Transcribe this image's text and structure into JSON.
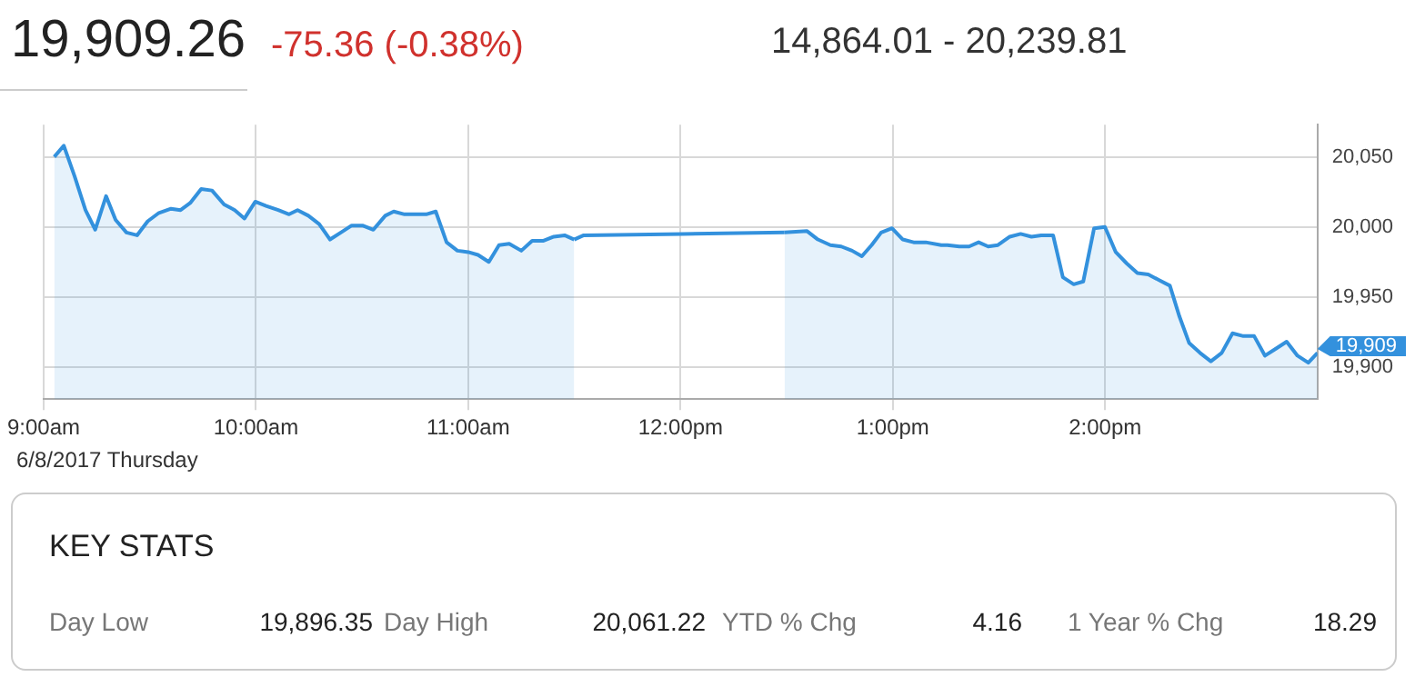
{
  "chart_data": {
    "type": "area",
    "title": "19,909.26",
    "subtitle": "-75.36 (-0.38%)",
    "xlim": [
      9,
      15
    ],
    "ylim": [
      19877,
      20073
    ],
    "xticks": [
      {
        "value": 9,
        "label": "9:00am"
      },
      {
        "value": 10,
        "label": "10:00am"
      },
      {
        "value": 11,
        "label": "11:00am"
      },
      {
        "value": 12,
        "label": "12:00pm"
      },
      {
        "value": 13,
        "label": "1:00pm"
      },
      {
        "value": 14,
        "label": "2:00pm"
      }
    ],
    "yticks": [
      {
        "value": 19900,
        "label": "19,900"
      },
      {
        "value": 19950,
        "label": "19,950"
      },
      {
        "value": 20000,
        "label": "20,000"
      },
      {
        "value": 20050,
        "label": "20,050"
      }
    ],
    "grid": true,
    "legend": false,
    "marker": "none",
    "line_style": "solid",
    "series": [
      {
        "color": "#3391dd",
        "x": [
          9.05,
          9.095,
          9.146,
          9.197,
          9.243,
          9.294,
          9.339,
          9.39,
          9.44,
          9.49,
          9.543,
          9.6,
          9.645,
          9.69,
          9.742,
          9.793,
          9.85,
          9.9,
          9.946,
          9.997,
          10.048,
          10.105,
          10.156,
          10.196,
          10.247,
          10.298,
          10.349,
          10.4,
          10.451,
          10.502,
          10.553,
          10.609,
          10.649,
          10.7,
          10.751,
          10.802,
          10.847,
          10.898,
          10.949,
          11.0,
          11.046,
          11.097,
          11.145,
          11.193,
          11.25,
          11.301,
          11.352,
          11.403,
          11.454,
          11.499
        ],
        "values": [
          20050,
          20058,
          20036,
          20012,
          19998,
          20022,
          20005,
          19996,
          19994,
          20004,
          20010,
          20013,
          20012,
          20017,
          20027,
          20026,
          20016,
          20012,
          20006,
          20018,
          20015,
          20012,
          20009,
          20012,
          20008,
          20002,
          19991,
          19996,
          20001,
          20001,
          19998,
          20008,
          20011,
          20009,
          20009,
          20009,
          20011,
          19989,
          19983,
          19982,
          19980,
          19975,
          19987,
          19988,
          19983,
          19990,
          19990,
          19993,
          19994,
          19991
        ]
      },
      {
        "type": "line",
        "color": "#3391dd",
        "x": [
          11.499,
          11.544,
          12.01,
          12.49
        ],
        "values": [
          19991,
          19994,
          19995,
          19996
        ]
      },
      {
        "color": "#3391dd",
        "x": [
          12.49,
          12.596,
          12.647,
          12.706,
          12.757,
          12.808,
          12.854,
          12.9,
          12.945,
          12.996,
          13.047,
          13.098,
          13.155,
          13.228,
          13.257,
          13.313,
          13.359,
          13.404,
          13.449,
          13.495,
          13.551,
          13.602,
          13.653,
          13.699,
          13.755,
          13.801,
          13.852,
          13.897,
          13.948,
          13.999,
          14.05,
          14.101,
          14.152,
          14.203,
          14.254,
          14.305,
          14.35,
          14.396,
          14.447,
          14.498,
          14.549,
          14.6,
          14.651,
          14.702,
          14.753,
          14.804,
          14.855,
          14.906,
          14.957,
          15.0
        ],
        "values": [
          19996,
          19997,
          19991,
          19987,
          19986,
          19983,
          19979,
          19987,
          19996,
          19999,
          19991,
          19989,
          19989,
          19987,
          19987,
          19986,
          19986,
          19989,
          19986,
          19987,
          19993,
          19995,
          19993,
          19994,
          19994,
          19964,
          19959,
          19961,
          19999,
          20000,
          19982,
          19974,
          19967,
          19966,
          19962,
          19958,
          19936,
          19917,
          19910,
          19904,
          19910,
          19924,
          19922,
          19922,
          19908,
          19913,
          19918,
          19908,
          19903,
          19910
        ]
      }
    ],
    "annotations": [
      "14,864.01 - 20,239.81",
      "6/8/2017 Thursday",
      {
        "text": "19,909",
        "x": 15,
        "y": 19909
      },
      "KEY STATS",
      "Day Low",
      "19,896.35",
      "Day High",
      "20,061.22",
      "YTD % Chg",
      "4.16",
      "1 Year % Chg",
      "18.29"
    ]
  }
}
